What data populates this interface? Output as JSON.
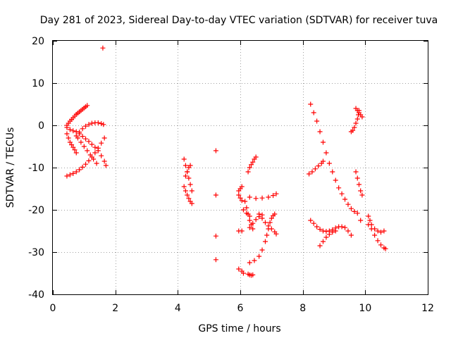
{
  "chart_data": {
    "type": "scatter",
    "title": "Day 281 of 2023, Sidereal Day-to-day VTEC variation (SDTVAR) for receiver tuva",
    "xlabel": "GPS time / hours",
    "ylabel": "SDTVAR / TECUs",
    "xlim": [
      0,
      12
    ],
    "ylim": [
      -40,
      20
    ],
    "xticks": [
      "0",
      "2",
      "4",
      "6",
      "8",
      "10",
      "12"
    ],
    "yticks": [
      "20",
      "10",
      "0",
      "-10",
      "-20",
      "-30",
      "-40"
    ],
    "grid": true,
    "marker": "+",
    "color": "#ff0000",
    "points": [
      [
        0.45,
        0.0
      ],
      [
        0.5,
        0.5
      ],
      [
        0.55,
        1.0
      ],
      [
        0.6,
        1.4
      ],
      [
        0.65,
        1.8
      ],
      [
        0.7,
        2.2
      ],
      [
        0.75,
        2.6
      ],
      [
        0.8,
        2.9
      ],
      [
        0.85,
        3.2
      ],
      [
        0.9,
        3.5
      ],
      [
        0.95,
        3.8
      ],
      [
        1.0,
        4.1
      ],
      [
        1.05,
        4.4
      ],
      [
        1.1,
        4.7
      ],
      [
        0.45,
        -0.5
      ],
      [
        0.55,
        -1.0
      ],
      [
        0.65,
        -1.3
      ],
      [
        0.75,
        -1.5
      ],
      [
        0.85,
        -2.0
      ],
      [
        0.95,
        -2.6
      ],
      [
        1.05,
        -3.2
      ],
      [
        1.15,
        -3.8
      ],
      [
        1.25,
        -4.5
      ],
      [
        1.35,
        -5.2
      ],
      [
        1.45,
        -6.0
      ],
      [
        1.55,
        -7.2
      ],
      [
        1.65,
        -8.5
      ],
      [
        1.7,
        -9.5
      ],
      [
        0.45,
        -12.0
      ],
      [
        0.55,
        -11.7
      ],
      [
        0.65,
        -11.4
      ],
      [
        0.75,
        -11.0
      ],
      [
        0.85,
        -10.5
      ],
      [
        0.95,
        -9.9
      ],
      [
        1.05,
        -9.2
      ],
      [
        1.15,
        -8.4
      ],
      [
        1.25,
        -7.5
      ],
      [
        1.35,
        -6.5
      ],
      [
        1.45,
        -5.4
      ],
      [
        1.55,
        -4.2
      ],
      [
        1.65,
        -3.0
      ],
      [
        0.45,
        -2.0
      ],
      [
        0.5,
        -3.0
      ],
      [
        0.55,
        -4.0
      ],
      [
        0.6,
        -4.6
      ],
      [
        0.65,
        -5.2
      ],
      [
        0.7,
        -5.8
      ],
      [
        0.75,
        -6.5
      ],
      [
        0.75,
        -2.5
      ],
      [
        0.85,
        -1.6
      ],
      [
        0.95,
        -0.8
      ],
      [
        1.05,
        -0.2
      ],
      [
        1.15,
        0.2
      ],
      [
        1.25,
        0.5
      ],
      [
        1.35,
        0.6
      ],
      [
        1.45,
        0.6
      ],
      [
        1.55,
        0.4
      ],
      [
        1.62,
        0.2
      ],
      [
        0.8,
        -3.0
      ],
      [
        0.9,
        -4.0
      ],
      [
        1.0,
        -5.0
      ],
      [
        1.1,
        -6.0
      ],
      [
        1.2,
        -7.0
      ],
      [
        1.3,
        -8.0
      ],
      [
        1.4,
        -9.0
      ],
      [
        1.6,
        18.3
      ],
      [
        4.2,
        -8.0
      ],
      [
        4.25,
        -9.5
      ],
      [
        4.3,
        -11.0
      ],
      [
        4.35,
        -12.5
      ],
      [
        4.4,
        -14.0
      ],
      [
        4.45,
        -15.5
      ],
      [
        4.25,
        -12.0
      ],
      [
        4.3,
        -11.0
      ],
      [
        4.35,
        -10.0
      ],
      [
        4.4,
        -9.5
      ],
      [
        4.2,
        -14.5
      ],
      [
        4.25,
        -15.5
      ],
      [
        4.3,
        -16.5
      ],
      [
        4.35,
        -17.3
      ],
      [
        4.4,
        -18.0
      ],
      [
        4.45,
        -18.5
      ],
      [
        5.22,
        -6.0
      ],
      [
        5.22,
        -16.5
      ],
      [
        5.22,
        -26.2
      ],
      [
        5.22,
        -31.8
      ],
      [
        5.95,
        -15.5
      ],
      [
        6.0,
        -15.0
      ],
      [
        6.05,
        -14.5
      ],
      [
        5.95,
        -16.5
      ],
      [
        6.0,
        -17.2
      ],
      [
        6.05,
        -17.8
      ],
      [
        5.95,
        -25.0
      ],
      [
        6.05,
        -25.0
      ],
      [
        5.95,
        -34.0
      ],
      [
        6.05,
        -34.5
      ],
      [
        6.1,
        -35.0
      ],
      [
        6.25,
        -35.2
      ],
      [
        6.3,
        -35.4
      ],
      [
        6.35,
        -35.5
      ],
      [
        6.4,
        -35.4
      ],
      [
        6.25,
        -11.0
      ],
      [
        6.3,
        -10.0
      ],
      [
        6.35,
        -9.3
      ],
      [
        6.4,
        -8.7
      ],
      [
        6.45,
        -8.0
      ],
      [
        6.5,
        -7.5
      ],
      [
        6.3,
        -17.0
      ],
      [
        6.5,
        -17.3
      ],
      [
        6.7,
        -17.2
      ],
      [
        6.9,
        -17.0
      ],
      [
        7.05,
        -16.6
      ],
      [
        7.15,
        -16.2
      ],
      [
        6.15,
        -18.0
      ],
      [
        6.2,
        -19.5
      ],
      [
        6.25,
        -21.0
      ],
      [
        6.3,
        -22.5
      ],
      [
        6.35,
        -23.5
      ],
      [
        6.4,
        -24.5
      ],
      [
        6.1,
        -20.0
      ],
      [
        6.2,
        -20.8
      ],
      [
        6.3,
        -21.5
      ],
      [
        6.3,
        -24.2
      ],
      [
        6.4,
        -23.2
      ],
      [
        6.5,
        -22.3
      ],
      [
        6.6,
        -21.6
      ],
      [
        6.7,
        -21.2
      ],
      [
        6.3,
        -32.5
      ],
      [
        6.45,
        -32.0
      ],
      [
        6.6,
        -31.0
      ],
      [
        6.7,
        -29.5
      ],
      [
        6.8,
        -27.5
      ],
      [
        6.85,
        -26.0
      ],
      [
        6.9,
        -24.5
      ],
      [
        6.95,
        -23.0
      ],
      [
        7.0,
        -22.0
      ],
      [
        7.05,
        -21.4
      ],
      [
        7.1,
        -21.0
      ],
      [
        6.6,
        -21.0
      ],
      [
        6.7,
        -22.0
      ],
      [
        6.8,
        -23.0
      ],
      [
        6.9,
        -23.8
      ],
      [
        7.0,
        -24.5
      ],
      [
        7.1,
        -25.2
      ],
      [
        7.15,
        -25.7
      ],
      [
        8.25,
        5.0
      ],
      [
        8.35,
        3.0
      ],
      [
        8.45,
        1.0
      ],
      [
        8.55,
        -1.5
      ],
      [
        8.65,
        -4.0
      ],
      [
        8.75,
        -6.5
      ],
      [
        8.85,
        -9.0
      ],
      [
        8.95,
        -11.0
      ],
      [
        9.05,
        -13.0
      ],
      [
        9.15,
        -14.8
      ],
      [
        9.25,
        -16.2
      ],
      [
        9.35,
        -17.5
      ],
      [
        9.45,
        -18.7
      ],
      [
        9.55,
        -19.7
      ],
      [
        9.65,
        -20.4
      ],
      [
        9.75,
        -20.8
      ],
      [
        8.2,
        -11.5
      ],
      [
        8.3,
        -11.0
      ],
      [
        8.4,
        -10.3
      ],
      [
        8.5,
        -9.6
      ],
      [
        8.6,
        -9.0
      ],
      [
        8.65,
        -8.5
      ],
      [
        9.55,
        -1.5
      ],
      [
        9.6,
        -1.2
      ],
      [
        9.65,
        -0.5
      ],
      [
        9.7,
        0.5
      ],
      [
        9.75,
        1.5
      ],
      [
        9.78,
        2.5
      ],
      [
        9.8,
        3.5
      ],
      [
        9.7,
        4.0
      ],
      [
        9.75,
        3.5
      ],
      [
        9.8,
        3.0
      ],
      [
        9.85,
        2.5
      ],
      [
        9.9,
        2.0
      ],
      [
        9.7,
        -11.0
      ],
      [
        9.75,
        -12.5
      ],
      [
        9.8,
        -14.0
      ],
      [
        9.85,
        -15.5
      ],
      [
        9.9,
        -16.5
      ],
      [
        9.85,
        -22.5
      ],
      [
        8.25,
        -22.5
      ],
      [
        8.35,
        -23.2
      ],
      [
        8.45,
        -24.0
      ],
      [
        8.55,
        -24.6
      ],
      [
        8.65,
        -25.0
      ],
      [
        8.75,
        -25.1
      ],
      [
        8.85,
        -25.0
      ],
      [
        8.95,
        -24.7
      ],
      [
        9.05,
        -24.3
      ],
      [
        9.15,
        -24.0
      ],
      [
        9.25,
        -24.0
      ],
      [
        9.35,
        -24.2
      ],
      [
        9.45,
        -25.0
      ],
      [
        9.55,
        -26.0
      ],
      [
        8.55,
        -28.5
      ],
      [
        8.65,
        -27.5
      ],
      [
        8.75,
        -26.5
      ],
      [
        8.85,
        -25.8
      ],
      [
        8.95,
        -25.3
      ],
      [
        9.05,
        -25.0
      ],
      [
        10.1,
        -21.5
      ],
      [
        10.15,
        -22.5
      ],
      [
        10.2,
        -23.5
      ],
      [
        10.3,
        -24.5
      ],
      [
        10.4,
        -25.0
      ],
      [
        10.5,
        -25.3
      ],
      [
        10.6,
        -25.0
      ],
      [
        10.1,
        -23.5
      ],
      [
        10.2,
        -24.5
      ],
      [
        10.3,
        -26.0
      ],
      [
        10.4,
        -27.3
      ],
      [
        10.5,
        -28.3
      ],
      [
        10.6,
        -29.0
      ],
      [
        10.65,
        -29.2
      ]
    ]
  }
}
